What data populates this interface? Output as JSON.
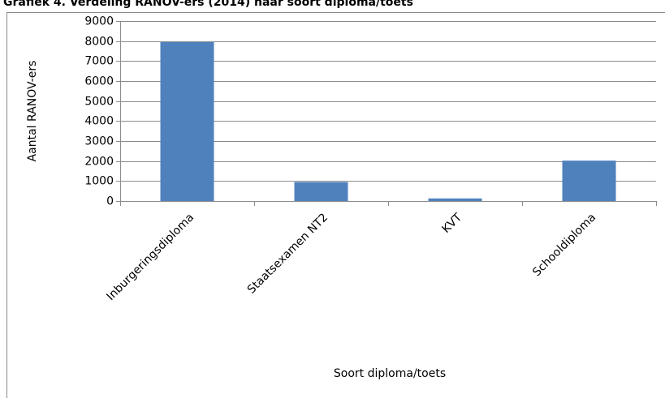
{
  "chart_data": {
    "type": "bar",
    "title": "Grafiek 4. Verdeling RANOV-ers (2014) naar soort diploma/toets",
    "y_label": "Aantal RANOV-ers",
    "x_label": "Soort diploma/toets",
    "categories": [
      "Inburgeringsdiploma",
      "Staatsexamen NT2",
      "KVT",
      "Schooldiploma"
    ],
    "values": [
      7950,
      950,
      130,
      2020
    ],
    "color": "#4f81bd",
    "ylim": [
      0,
      9000
    ],
    "yticks": [
      0,
      1000,
      2000,
      3000,
      4000,
      5000,
      6000,
      7000,
      8000,
      9000
    ],
    "grid": true
  }
}
